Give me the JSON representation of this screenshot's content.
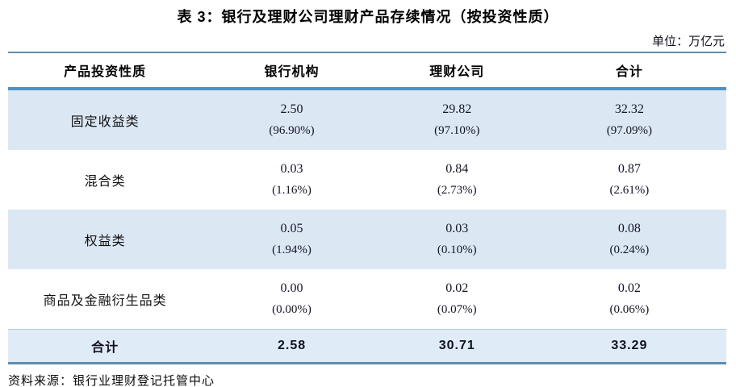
{
  "title": "表 3：银行及理财公司理财产品存续情况（按投资性质）",
  "unit_label": "单位：万亿元",
  "source_note": "资料来源：银行业理财登记托管中心",
  "colors": {
    "stripe_row_bg": "#dbe8f4",
    "total_row_bg": "#dfecf7",
    "header_rule": "#4f91c5",
    "outer_rule": "#5f8db0"
  },
  "table": {
    "columns": [
      "产品投资性质",
      "银行机构",
      "理财公司",
      "合计"
    ],
    "rows": [
      {
        "label": "固定收益类",
        "cells": [
          {
            "value": "2.50",
            "pct": "(96.90%)"
          },
          {
            "value": "29.82",
            "pct": "(97.10%)"
          },
          {
            "value": "32.32",
            "pct": "(97.09%)"
          }
        ]
      },
      {
        "label": "混合类",
        "cells": [
          {
            "value": "0.03",
            "pct": "(1.16%)"
          },
          {
            "value": "0.84",
            "pct": "(2.73%)"
          },
          {
            "value": "0.87",
            "pct": "(2.61%)"
          }
        ]
      },
      {
        "label": "权益类",
        "cells": [
          {
            "value": "0.05",
            "pct": "(1.94%)"
          },
          {
            "value": "0.03",
            "pct": "(0.10%)"
          },
          {
            "value": "0.08",
            "pct": "(0.24%)"
          }
        ]
      },
      {
        "label": "商品及金融衍生品类",
        "cells": [
          {
            "value": "0.00",
            "pct": "(0.00%)"
          },
          {
            "value": "0.02",
            "pct": "(0.07%)"
          },
          {
            "value": "0.02",
            "pct": "(0.06%)"
          }
        ]
      }
    ],
    "total": {
      "label": "合计",
      "values": [
        "2.58",
        "30.71",
        "33.29"
      ]
    }
  }
}
